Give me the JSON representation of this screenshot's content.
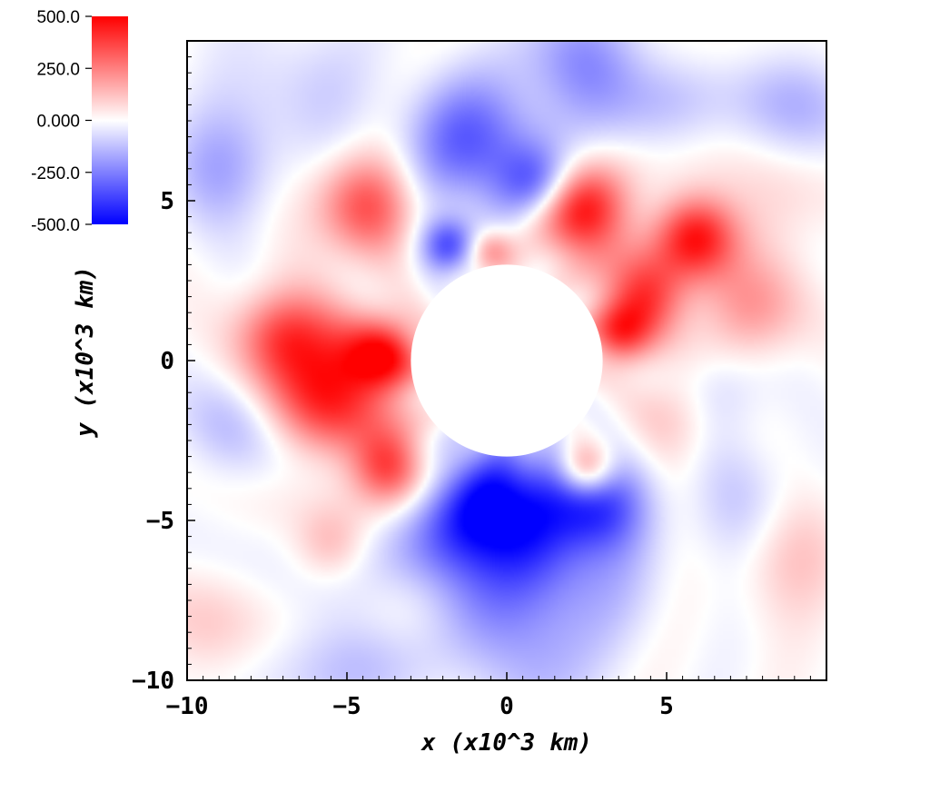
{
  "chart_data": {
    "type": "heatmap",
    "title": "",
    "xlabel": "x (x10^3 km)",
    "ylabel": "y (x10^3 km)",
    "xlim": [
      -10,
      10
    ],
    "ylim": [
      -10,
      10
    ],
    "xticks": [
      -10,
      -5,
      0,
      5
    ],
    "xtick_labels": [
      "−10",
      "−5",
      "0",
      "5"
    ],
    "yticks": [
      -10,
      -5,
      0,
      5
    ],
    "ytick_labels": [
      "−10",
      "−5",
      "0",
      "5"
    ],
    "colorbar": {
      "colormap": "blue-white-red",
      "range": [
        -500,
        500
      ],
      "ticks": [
        500,
        250,
        0,
        -250,
        -500
      ],
      "tick_labels": [
        "500.0",
        "250.0",
        "0.000",
        "-250.0",
        "-500.0"
      ],
      "colors": {
        "min": "#0000ff",
        "mid": "#ffffff",
        "max": "#ff0000"
      }
    },
    "masked_region": {
      "shape": "circle",
      "center": [
        0,
        0
      ],
      "radius": 3.0
    },
    "features": [
      {
        "x": 2.4,
        "y": 4.6,
        "sigma": 1.0,
        "value": 480
      },
      {
        "x": 5.9,
        "y": 3.9,
        "sigma": 0.9,
        "value": 430
      },
      {
        "x": 4.3,
        "y": 2.0,
        "sigma": 0.9,
        "value": 400
      },
      {
        "x": 3.5,
        "y": 0.8,
        "sigma": 0.7,
        "value": 300
      },
      {
        "x": 7.5,
        "y": 1.5,
        "sigma": 1.1,
        "value": 200
      },
      {
        "x": 2.5,
        "y": -3.4,
        "sigma": 0.6,
        "value": 300
      },
      {
        "x": 5.5,
        "y": -1.5,
        "sigma": 1.0,
        "value": 150
      },
      {
        "x": -5.5,
        "y": -0.8,
        "sigma": 1.4,
        "value": 460
      },
      {
        "x": -7.0,
        "y": 0.8,
        "sigma": 1.0,
        "value": 300
      },
      {
        "x": -3.8,
        "y": 0.2,
        "sigma": 0.8,
        "value": 350
      },
      {
        "x": -4.5,
        "y": 4.8,
        "sigma": 1.1,
        "value": 330
      },
      {
        "x": -3.7,
        "y": -3.3,
        "sigma": 0.8,
        "value": 380
      },
      {
        "x": -0.5,
        "y": 3.4,
        "sigma": 0.5,
        "value": 250
      },
      {
        "x": -1.0,
        "y": 6.8,
        "sigma": 1.4,
        "value": -330
      },
      {
        "x": 1.0,
        "y": 5.5,
        "sigma": 0.8,
        "value": -250
      },
      {
        "x": -1.8,
        "y": 3.6,
        "sigma": 0.6,
        "value": -350
      },
      {
        "x": -0.2,
        "y": -4.5,
        "sigma": 1.3,
        "value": -460
      },
      {
        "x": 2.8,
        "y": -4.5,
        "sigma": 1.0,
        "value": -350
      },
      {
        "x": -1.5,
        "y": -6.2,
        "sigma": 1.5,
        "value": -250
      },
      {
        "x": 2.0,
        "y": -6.5,
        "sigma": 1.6,
        "value": -200
      },
      {
        "x": 2.5,
        "y": 9.2,
        "sigma": 1.2,
        "value": -250
      },
      {
        "x": -9.0,
        "y": 6.0,
        "sigma": 1.3,
        "value": -150
      },
      {
        "x": 9.0,
        "y": 8.0,
        "sigma": 1.3,
        "value": -130
      },
      {
        "x": -8.5,
        "y": -2.0,
        "sigma": 1.2,
        "value": -120
      },
      {
        "x": 6.5,
        "y": -1.0,
        "sigma": 1.0,
        "value": -140
      },
      {
        "x": 7.5,
        "y": -4.5,
        "sigma": 1.3,
        "value": -100
      },
      {
        "x": -4.5,
        "y": -9.0,
        "sigma": 1.6,
        "value": -130
      },
      {
        "x": 0.5,
        "y": -9.2,
        "sigma": 1.4,
        "value": -150
      },
      {
        "x": -6.5,
        "y": 8.5,
        "sigma": 1.5,
        "value": -90
      },
      {
        "x": 5.0,
        "y": 8.0,
        "sigma": 1.2,
        "value": -80
      },
      {
        "x": -5.5,
        "y": -5.8,
        "sigma": 0.8,
        "value": 140
      },
      {
        "x": -3.0,
        "y": -8.0,
        "sigma": 1.3,
        "value": 90
      },
      {
        "x": 9.0,
        "y": -6.0,
        "sigma": 1.4,
        "value": 110
      },
      {
        "x": 8.0,
        "y": 4.5,
        "sigma": 1.3,
        "value": 90
      },
      {
        "x": -9.5,
        "y": -8.5,
        "sigma": 1.2,
        "value": 80
      }
    ]
  }
}
